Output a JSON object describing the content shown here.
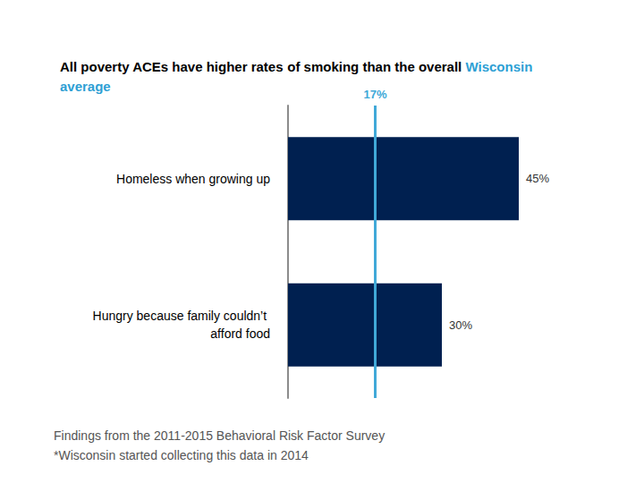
{
  "chart_data": {
    "type": "bar",
    "orientation": "horizontal",
    "title": "All poverty ACEs have higher rates of smoking than the overall Wisconsin average",
    "categories": [
      "Homeless when growing up",
      "Hungry because family couldn’t afford food"
    ],
    "values": [
      45,
      30
    ],
    "value_labels": [
      "45%",
      "30%"
    ],
    "data_labels": true,
    "color": "#002050",
    "xlim": [
      0,
      45
    ],
    "tick_labels": "y",
    "grid": false,
    "reference_line": {
      "value": 17,
      "label": "17%",
      "color": "#41a9d8"
    },
    "notes": [
      "Findings from the 2011-2015 Behavioral Risk Factor Survey",
      "*Wisconsin started collecting this data in 2014"
    ]
  }
}
